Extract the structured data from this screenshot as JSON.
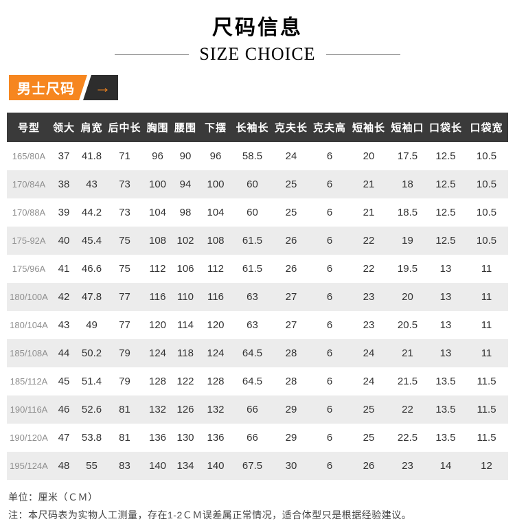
{
  "header": {
    "title": "尺码信息",
    "subtitle": "SIZE CHOICE"
  },
  "badge": {
    "label": "男士尺码",
    "arrow_icon": "→"
  },
  "table": {
    "columns": [
      "号型",
      "领大",
      "肩宽",
      "后中长",
      "胸围",
      "腰围",
      "下摆",
      "长袖长",
      "克夫长",
      "克夫高",
      "短袖长",
      "短袖口",
      "口袋长",
      "口袋宽"
    ],
    "rows": [
      [
        "165/80A",
        "37",
        "41.8",
        "71",
        "96",
        "90",
        "96",
        "58.5",
        "24",
        "6",
        "20",
        "17.5",
        "12.5",
        "10.5"
      ],
      [
        "170/84A",
        "38",
        "43",
        "73",
        "100",
        "94",
        "100",
        "60",
        "25",
        "6",
        "21",
        "18",
        "12.5",
        "10.5"
      ],
      [
        "170/88A",
        "39",
        "44.2",
        "73",
        "104",
        "98",
        "104",
        "60",
        "25",
        "6",
        "21",
        "18.5",
        "12.5",
        "10.5"
      ],
      [
        "175-92A",
        "40",
        "45.4",
        "75",
        "108",
        "102",
        "108",
        "61.5",
        "26",
        "6",
        "22",
        "19",
        "12.5",
        "10.5"
      ],
      [
        "175/96A",
        "41",
        "46.6",
        "75",
        "112",
        "106",
        "112",
        "61.5",
        "26",
        "6",
        "22",
        "19.5",
        "13",
        "11"
      ],
      [
        "180/100A",
        "42",
        "47.8",
        "77",
        "116",
        "110",
        "116",
        "63",
        "27",
        "6",
        "23",
        "20",
        "13",
        "11"
      ],
      [
        "180/104A",
        "43",
        "49",
        "77",
        "120",
        "114",
        "120",
        "63",
        "27",
        "6",
        "23",
        "20.5",
        "13",
        "11"
      ],
      [
        "185/108A",
        "44",
        "50.2",
        "79",
        "124",
        "118",
        "124",
        "64.5",
        "28",
        "6",
        "24",
        "21",
        "13",
        "11"
      ],
      [
        "185/112A",
        "45",
        "51.4",
        "79",
        "128",
        "122",
        "128",
        "64.5",
        "28",
        "6",
        "24",
        "21.5",
        "13.5",
        "11.5"
      ],
      [
        "190/116A",
        "46",
        "52.6",
        "81",
        "132",
        "126",
        "132",
        "66",
        "29",
        "6",
        "25",
        "22",
        "13.5",
        "11.5"
      ],
      [
        "190/120A",
        "47",
        "53.8",
        "81",
        "136",
        "130",
        "136",
        "66",
        "29",
        "6",
        "25",
        "22.5",
        "13.5",
        "11.5"
      ],
      [
        "195/124A",
        "48",
        "55",
        "83",
        "140",
        "134",
        "140",
        "67.5",
        "30",
        "6",
        "26",
        "23",
        "14",
        "12"
      ]
    ]
  },
  "footer": {
    "unit_note": "单位：厘米（ＣＭ）",
    "measure_note": "注：本尺码表为实物人工测量，存在1-2ＣＭ误差属正常情况，适合体型只是根据经验建议。"
  },
  "colors": {
    "accent_orange": "#f6861f",
    "table_header_dark": "#3a3a3a",
    "badge_dark": "#2d2d2d",
    "zebra_gray": "#ececec"
  }
}
